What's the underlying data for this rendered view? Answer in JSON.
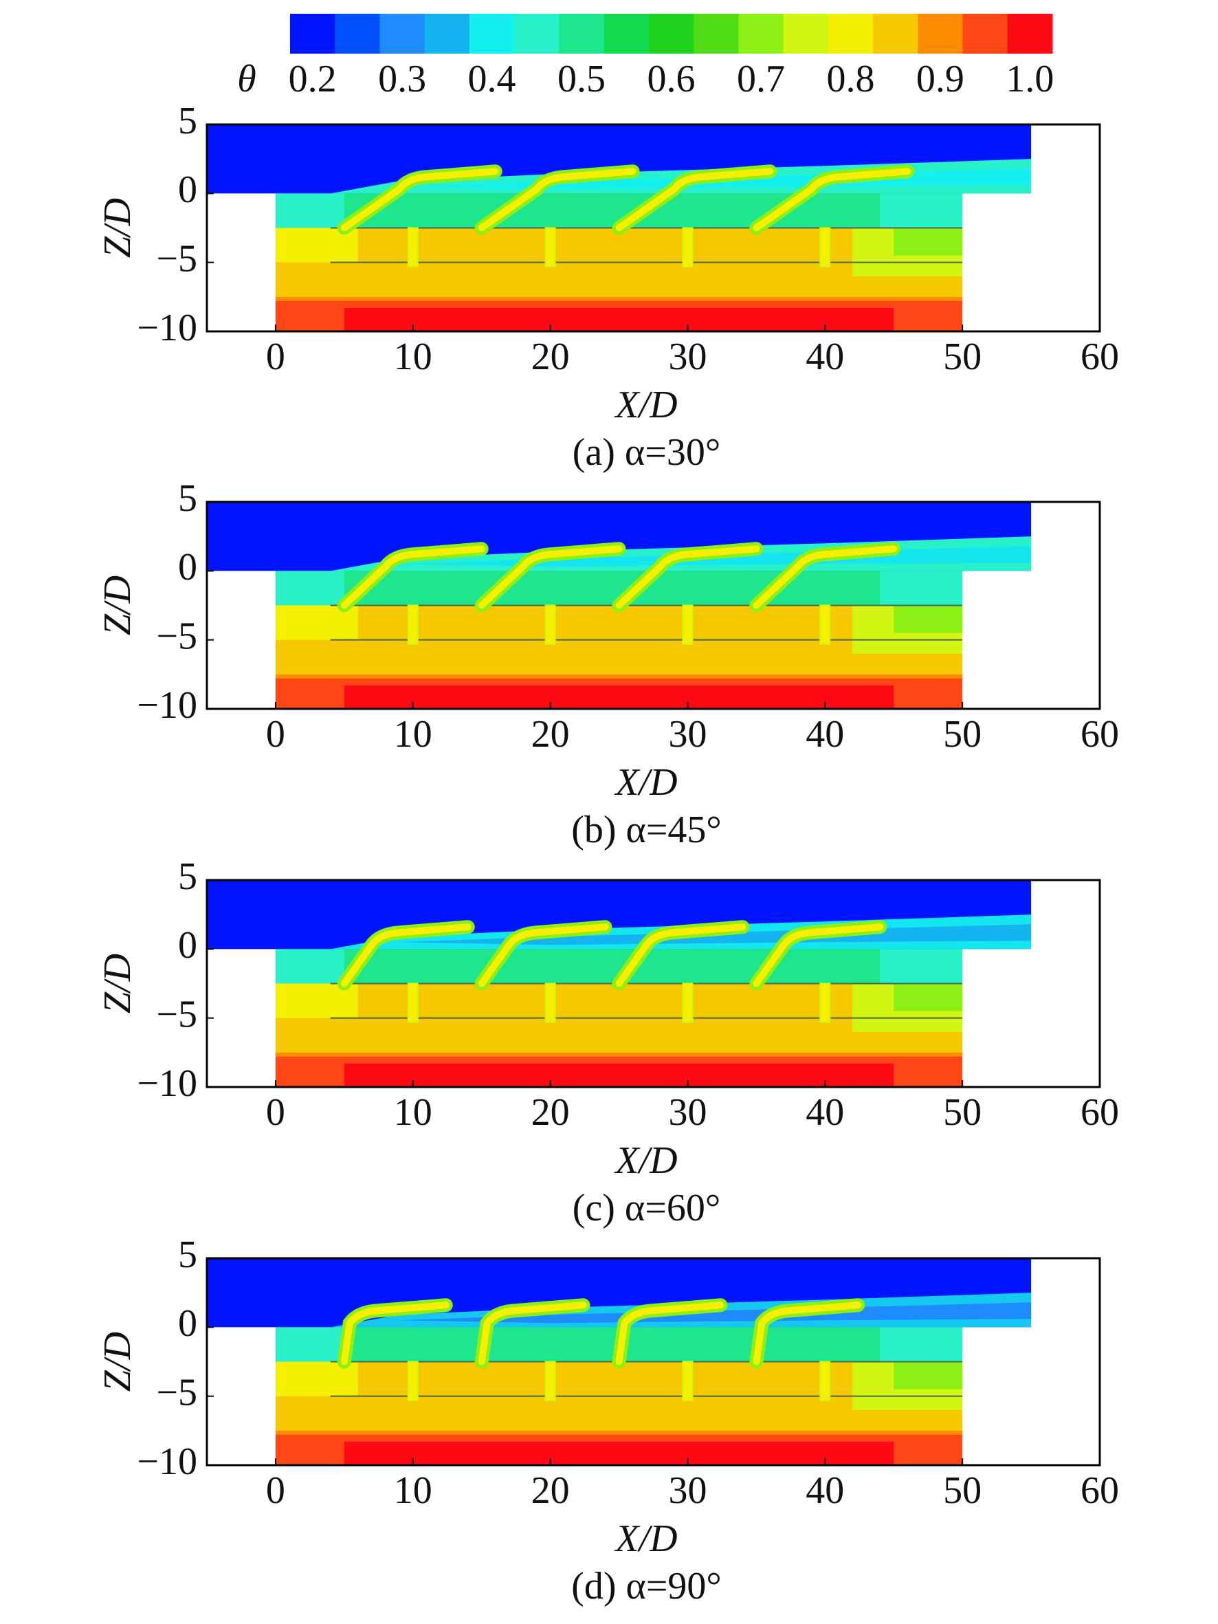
{
  "colorbar": {
    "label": "θ",
    "levels": [
      0.175,
      0.225,
      0.275,
      0.325,
      0.375,
      0.425,
      0.475,
      0.525,
      0.575,
      0.625,
      0.675,
      0.725,
      0.775,
      0.825,
      0.875,
      0.925,
      0.975,
      1.025
    ],
    "colors": [
      "#0014ff",
      "#0050ff",
      "#1e8cff",
      "#14b4f0",
      "#14f0f0",
      "#28f0c8",
      "#1ee68c",
      "#14dc50",
      "#1ed21e",
      "#50dc14",
      "#8cf014",
      "#d2f514",
      "#f5f000",
      "#f5c800",
      "#ff8c00",
      "#ff4614",
      "#ff0a14"
    ],
    "ticks": [
      0.2,
      0.3,
      0.4,
      0.5,
      0.6,
      0.7,
      0.8,
      0.9,
      {
        "value": 1,
        "label": "1.0"
      }
    ]
  },
  "chart_data": [
    {
      "type": "contour",
      "title": "(a) α=30°",
      "xlabel": "X/D",
      "ylabel": "Z/D",
      "xlim": [
        -5,
        60
      ],
      "ylim": [
        -10,
        5
      ],
      "xticks": [
        0,
        10,
        20,
        30,
        40,
        50,
        60
      ],
      "yticks": [
        {
          "value": -10,
          "label": "−10"
        },
        {
          "value": -5,
          "label": "−5"
        },
        0,
        5
      ]
    },
    {
      "type": "contour",
      "title": "(b) α=45°",
      "xlabel": "X/D",
      "ylabel": "Z/D",
      "xlim": [
        -5,
        60
      ],
      "ylim": [
        -10,
        5
      ],
      "xticks": [
        0,
        10,
        20,
        30,
        40,
        50,
        60
      ],
      "yticks": [
        {
          "value": -10,
          "label": "−10"
        },
        {
          "value": -5,
          "label": "−5"
        },
        0,
        5
      ]
    },
    {
      "type": "contour",
      "title": "(c) α=60°",
      "xlabel": "X/D",
      "ylabel": "Z/D",
      "xlim": [
        -5,
        60
      ],
      "ylim": [
        -10,
        5
      ],
      "xticks": [
        0,
        10,
        20,
        30,
        40,
        50,
        60
      ],
      "yticks": [
        {
          "value": -10,
          "label": "−10"
        },
        {
          "value": -5,
          "label": "−5"
        },
        0,
        5
      ]
    },
    {
      "type": "contour",
      "title": "(d) α=90°",
      "xlabel": "X/D",
      "ylabel": "Z/D",
      "xlim": [
        -5,
        60
      ],
      "ylim": [
        -10,
        5
      ],
      "xticks": [
        0,
        10,
        20,
        30,
        40,
        50,
        60
      ],
      "yticks": [
        {
          "value": -10,
          "label": "−10"
        },
        {
          "value": -5,
          "label": "−5"
        },
        0,
        5
      ]
    }
  ]
}
